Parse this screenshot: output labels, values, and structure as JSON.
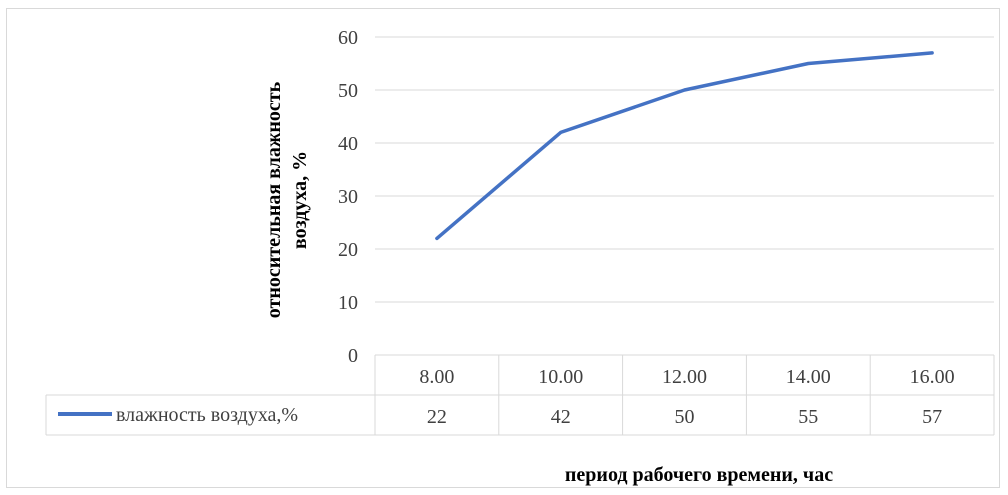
{
  "chart_data": {
    "type": "line",
    "categories": [
      "8.00",
      "10.00",
      "12.00",
      "14.00",
      "16.00"
    ],
    "series": [
      {
        "name": "влажность воздуха,%",
        "values": [
          22,
          42,
          50,
          55,
          57
        ],
        "color": "#4472C4"
      }
    ],
    "yticks": [
      "0",
      "10",
      "20",
      "30",
      "40",
      "50",
      "60"
    ],
    "ylim": [
      0,
      60
    ],
    "ylabel_line1": "относительная влажность",
    "ylabel_line2": "воздуха, %",
    "xlabel": "период рабочего времени, час",
    "grid": true,
    "data_table": true
  }
}
